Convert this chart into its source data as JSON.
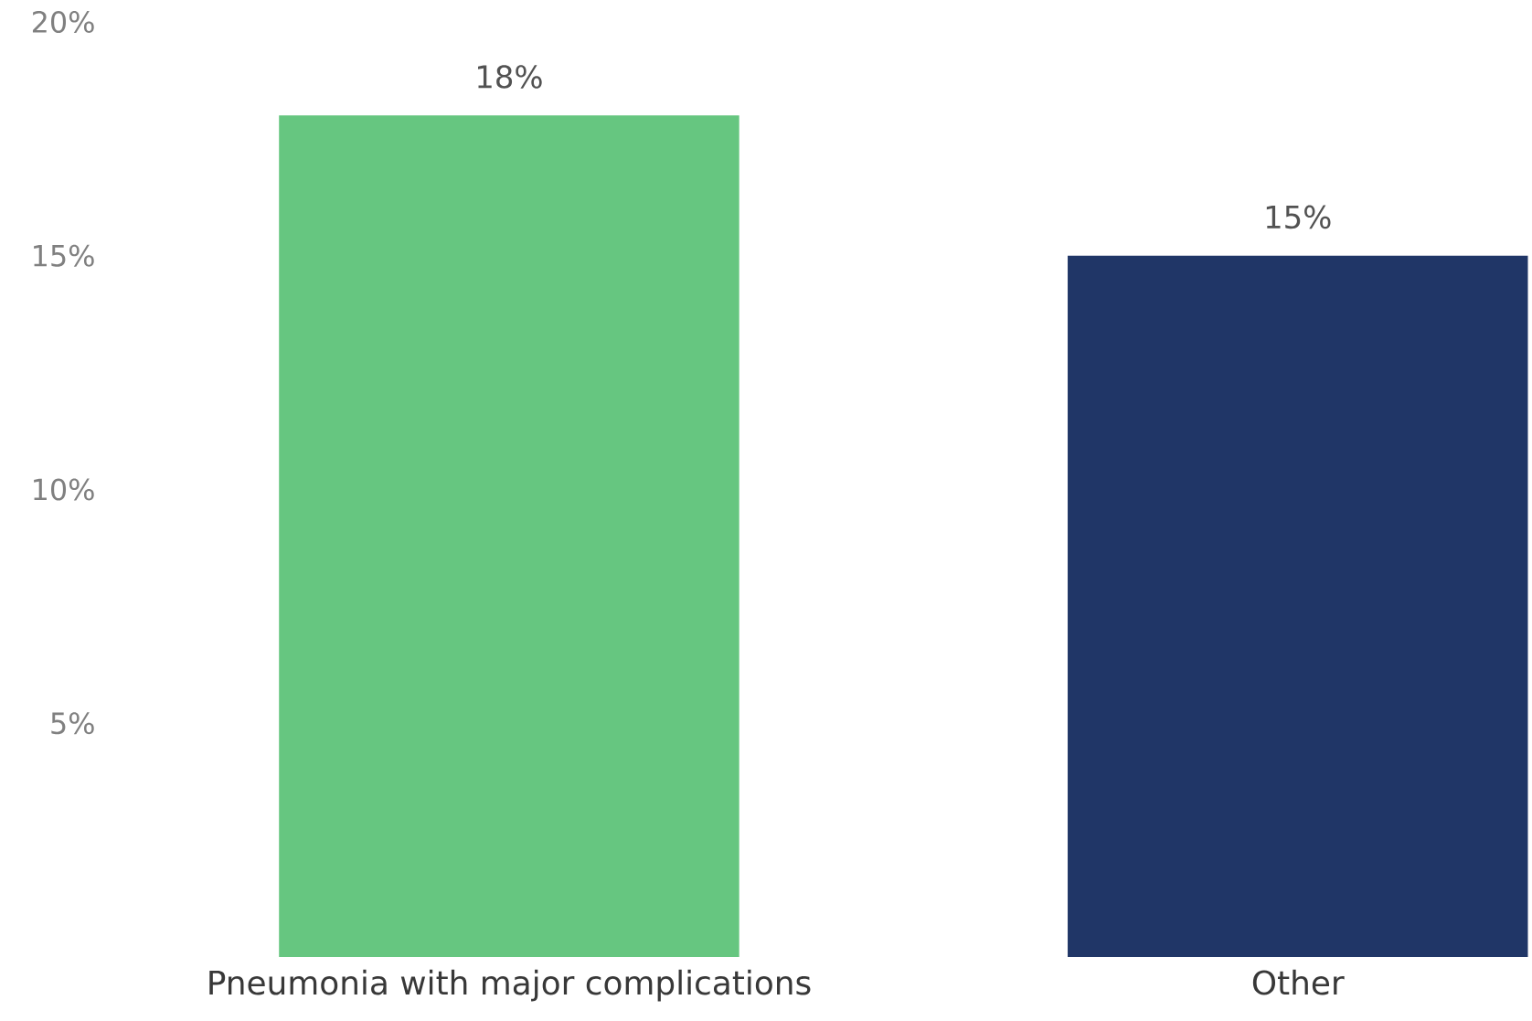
{
  "chart_data": {
    "type": "bar",
    "categories": [
      "Pneumonia with major complications",
      "Other"
    ],
    "values": [
      18,
      15
    ],
    "value_labels": [
      "18%",
      "15%"
    ],
    "colors": [
      "#66c680",
      "#203667"
    ],
    "ylim": [
      0,
      20
    ],
    "yticks": [
      {
        "value": 5,
        "label": "5%"
      },
      {
        "value": 10,
        "label": "10%"
      },
      {
        "value": 15,
        "label": "15%"
      },
      {
        "value": 20,
        "label": "20%"
      }
    ]
  }
}
